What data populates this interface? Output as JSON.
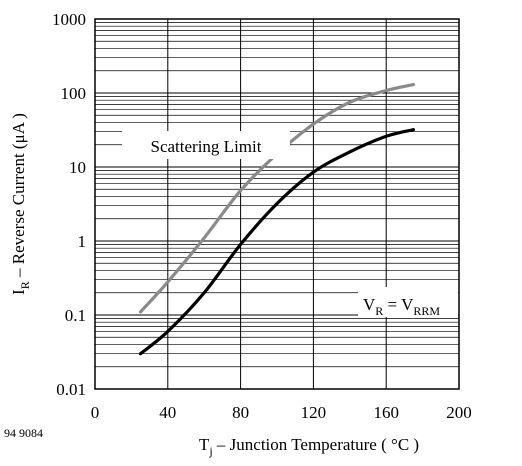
{
  "figure_id": "94 9084",
  "chart_data": {
    "type": "line",
    "xlabel_main": "T",
    "xlabel_sub": "j",
    "xlabel_rest": " – Junction Temperature ( °C )",
    "ylabel_main": "I",
    "ylabel_sub": "R",
    "ylabel_rest": " – Reverse Current (μA )",
    "xlim": [
      0,
      200
    ],
    "ylim": [
      0.01,
      1000
    ],
    "yscale": "log",
    "grid": true,
    "xticks": [
      0,
      40,
      80,
      120,
      160,
      200
    ],
    "xtick_labels": [
      "0",
      "40",
      "80",
      "120",
      "160",
      "200"
    ],
    "yticks": [
      0.01,
      0.1,
      1,
      10,
      100,
      1000
    ],
    "ytick_labels": [
      "0.01",
      "0.1",
      "1",
      "10",
      "100",
      "1000"
    ],
    "series": [
      {
        "name": "Scattering Limit",
        "color": "#8a8a8a",
        "x": [
          25,
          40,
          60,
          80,
          100,
          120,
          140,
          160,
          175
        ],
        "y": [
          0.11,
          0.28,
          1.1,
          4.8,
          15,
          38,
          75,
          108,
          130
        ]
      },
      {
        "color": "#000000",
        "x": [
          25,
          40,
          60,
          80,
          100,
          120,
          140,
          160,
          175
        ],
        "y": [
          0.03,
          0.06,
          0.2,
          0.9,
          3.2,
          8.5,
          16,
          26,
          32
        ]
      }
    ],
    "annotations": [
      {
        "text": "Scattering Limit"
      },
      {
        "v_main": "V",
        "v_sub": "R",
        "eq": " = ",
        "v2_main": "V",
        "v2_sub": "RRM"
      }
    ]
  }
}
